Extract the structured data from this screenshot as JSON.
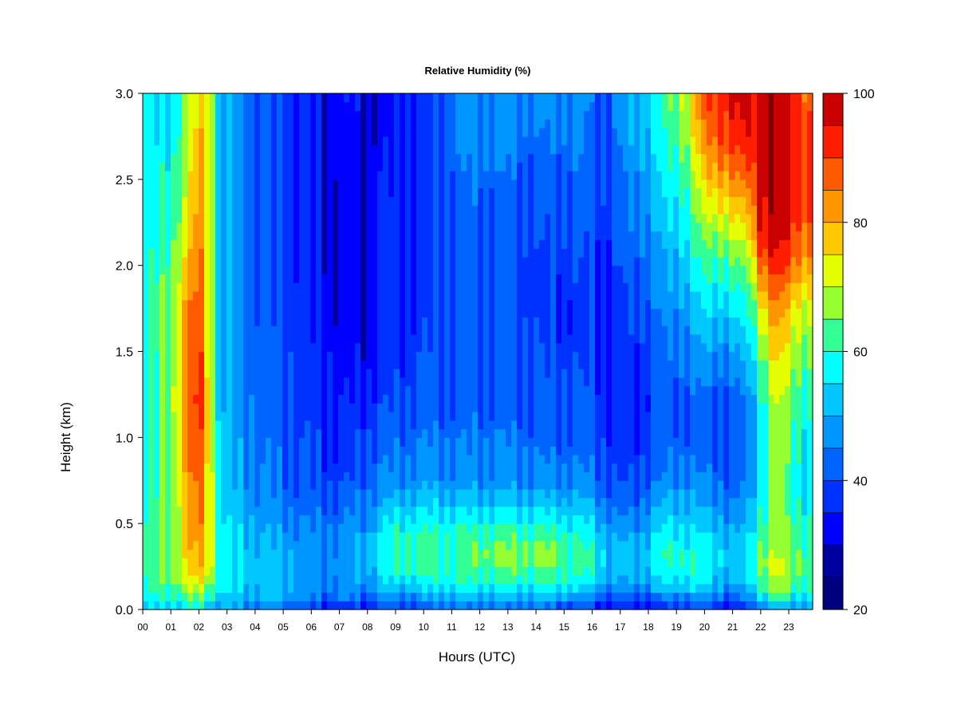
{
  "chart_data": {
    "type": "heatmap",
    "title": "Relative Humidity (%)",
    "xlabel": "Hours (UTC)",
    "ylabel": "Height (km)",
    "xlim": [
      0,
      23.85
    ],
    "ylim": [
      0.0,
      3.0
    ],
    "x_tick_labels": [
      "00",
      "01",
      "02",
      "03",
      "04",
      "05",
      "06",
      "07",
      "08",
      "09",
      "10",
      "11",
      "12",
      "13",
      "14",
      "15",
      "16",
      "17",
      "18",
      "19",
      "20",
      "21",
      "22",
      "23"
    ],
    "y_tick_labels": [
      "0.0",
      "0.5",
      "1.0",
      "1.5",
      "2.0",
      "2.5",
      "3.0"
    ],
    "y_tick_values": [
      0.0,
      0.5,
      1.0,
      1.5,
      2.0,
      2.5,
      3.0
    ],
    "colorbar": {
      "range": [
        20,
        100
      ],
      "step": 5,
      "tick_values": [
        20,
        40,
        60,
        80,
        100
      ],
      "tick_labels": [
        "20",
        "40",
        "60",
        "80",
        "100"
      ],
      "colors": [
        "#00007f",
        "#00009f",
        "#0000ff",
        "#0032ff",
        "#0064ff",
        "#0096ff",
        "#00c8ff",
        "#00ffff",
        "#32ff96",
        "#96ff32",
        "#e6ff00",
        "#ffc800",
        "#ff9600",
        "#ff5a00",
        "#ff1e00",
        "#c80000",
        "#800000"
      ]
    },
    "heights_km": [
      0.0,
      0.05,
      0.1,
      0.2,
      0.3,
      0.4,
      0.5,
      0.6,
      0.7,
      0.8,
      1.0,
      1.2,
      1.4,
      1.6,
      1.8,
      2.0,
      2.2,
      2.4,
      2.6,
      2.8,
      3.0
    ],
    "columns": [
      {
        "hour": 0.0,
        "rh": [
          50,
          55,
          58,
          60,
          60,
          60,
          60,
          58,
          57,
          55,
          55,
          55,
          55,
          55,
          56,
          56,
          56,
          56,
          56,
          56,
          56
        ]
      },
      {
        "hour": 0.5,
        "rh": [
          52,
          57,
          60,
          62,
          63,
          63,
          62,
          61,
          60,
          60,
          60,
          60,
          60,
          61,
          61,
          60,
          58,
          57,
          56,
          55,
          55
        ]
      },
      {
        "hour": 1.0,
        "rh": [
          53,
          58,
          62,
          65,
          66,
          66,
          66,
          66,
          66,
          66,
          66,
          66,
          66,
          66,
          65,
          64,
          62,
          60,
          58,
          56,
          55
        ]
      },
      {
        "hour": 1.5,
        "rh": [
          55,
          62,
          66,
          72,
          76,
          76,
          76,
          77,
          78,
          80,
          82,
          85,
          84,
          82,
          80,
          76,
          72,
          70,
          68,
          66,
          65
        ]
      },
      {
        "hour": 2.0,
        "rh": [
          55,
          62,
          68,
          76,
          80,
          82,
          84,
          85,
          86,
          88,
          90,
          92,
          92,
          90,
          88,
          86,
          84,
          82,
          80,
          78,
          76
        ]
      },
      {
        "hour": 2.4,
        "rh": [
          52,
          58,
          64,
          72,
          74,
          74,
          74,
          74,
          74,
          74,
          74,
          74,
          72,
          72,
          72,
          72,
          72,
          74,
          74,
          74,
          74
        ]
      },
      {
        "hour": 2.8,
        "rh": [
          48,
          52,
          55,
          57,
          57,
          56,
          55,
          54,
          53,
          52,
          51,
          50,
          50,
          50,
          50,
          50,
          50,
          50,
          50,
          50,
          50
        ]
      },
      {
        "hour": 3.5,
        "rh": [
          45,
          50,
          52,
          54,
          54,
          53,
          52,
          50,
          49,
          48,
          47,
          46,
          45,
          45,
          45,
          45,
          45,
          45,
          45,
          45,
          45
        ]
      },
      {
        "hour": 4.5,
        "rh": [
          45,
          50,
          52,
          53,
          52,
          50,
          48,
          46,
          45,
          44,
          43,
          42,
          42,
          41,
          40,
          40,
          40,
          40,
          40,
          40,
          40
        ]
      },
      {
        "hour": 5.5,
        "rh": [
          40,
          46,
          50,
          50,
          50,
          48,
          46,
          44,
          42,
          41,
          40,
          39,
          39,
          38,
          38,
          37,
          37,
          37,
          37,
          37,
          37
        ]
      },
      {
        "hour": 6.0,
        "rh": [
          35,
          40,
          45,
          47,
          47,
          46,
          44,
          42,
          40,
          39,
          38,
          37,
          36,
          35,
          35,
          34,
          34,
          33,
          33,
          33,
          33
        ]
      },
      {
        "hour": 6.5,
        "rh": [
          35,
          40,
          45,
          47,
          47,
          46,
          44,
          42,
          40,
          38,
          37,
          36,
          35,
          35,
          34,
          33,
          33,
          33,
          33,
          33,
          33
        ]
      },
      {
        "hour": 7.0,
        "rh": [
          36,
          42,
          47,
          48,
          48,
          46,
          44,
          42,
          40,
          38,
          36,
          35,
          33,
          32,
          31,
          31,
          31,
          32,
          33,
          33,
          34
        ]
      },
      {
        "hour": 7.5,
        "rh": [
          35,
          40,
          45,
          48,
          48,
          47,
          46,
          44,
          42,
          39,
          37,
          35,
          33,
          32,
          31,
          31,
          31,
          32,
          32,
          32,
          33
        ]
      },
      {
        "hour": 8.0,
        "rh": [
          35,
          40,
          45,
          50,
          52,
          50,
          48,
          46,
          44,
          42,
          40,
          37,
          34,
          32,
          32,
          32,
          32,
          32,
          32,
          32,
          32
        ]
      },
      {
        "hour": 8.5,
        "rh": [
          37,
          42,
          48,
          54,
          57,
          57,
          54,
          50,
          47,
          45,
          42,
          39,
          36,
          35,
          35,
          35,
          35,
          35,
          34,
          33,
          33
        ]
      },
      {
        "hour": 9.0,
        "rh": [
          38,
          43,
          50,
          58,
          60,
          60,
          57,
          52,
          48,
          45,
          42,
          39,
          37,
          36,
          35,
          35,
          35,
          35,
          34,
          34,
          34
        ]
      },
      {
        "hour": 10.0,
        "rh": [
          40,
          45,
          52,
          60,
          62,
          62,
          58,
          54,
          50,
          47,
          44,
          41,
          40,
          39,
          38,
          37,
          37,
          37,
          37,
          37,
          37
        ]
      },
      {
        "hour": 11.0,
        "rh": [
          42,
          47,
          55,
          60,
          63,
          62,
          58,
          53,
          49,
          46,
          44,
          42,
          41,
          41,
          40,
          40,
          41,
          42,
          43,
          44,
          45
        ]
      },
      {
        "hour": 12.0,
        "rh": [
          42,
          47,
          55,
          61,
          64,
          63,
          58,
          53,
          49,
          46,
          44,
          42,
          41,
          40,
          40,
          40,
          41,
          43,
          45,
          47,
          48
        ]
      },
      {
        "hour": 13.0,
        "rh": [
          42,
          47,
          55,
          63,
          66,
          64,
          59,
          54,
          49,
          46,
          44,
          42,
          41,
          40,
          40,
          40,
          41,
          42,
          44,
          46,
          47
        ]
      },
      {
        "hour": 14.0,
        "rh": [
          42,
          47,
          55,
          62,
          65,
          64,
          58,
          53,
          48,
          45,
          43,
          41,
          40,
          39,
          38,
          38,
          39,
          40,
          42,
          44,
          46
        ]
      },
      {
        "hour": 14.5,
        "rh": [
          40,
          46,
          55,
          62,
          66,
          64,
          58,
          52,
          48,
          45,
          42,
          40,
          39,
          38,
          38,
          38,
          39,
          40,
          42,
          44,
          46
        ]
      },
      {
        "hour": 15.5,
        "rh": [
          38,
          44,
          52,
          60,
          62,
          60,
          56,
          52,
          48,
          45,
          42,
          40,
          39,
          38,
          38,
          39,
          40,
          42,
          44,
          46,
          48
        ]
      },
      {
        "hour": 16.0,
        "rh": [
          35,
          42,
          50,
          58,
          60,
          58,
          54,
          50,
          47,
          44,
          42,
          40,
          39,
          38,
          38,
          38,
          39,
          40,
          41,
          42,
          43
        ]
      },
      {
        "hour": 16.5,
        "rh": [
          32,
          38,
          45,
          52,
          54,
          52,
          48,
          45,
          42,
          40,
          38,
          36,
          36,
          36,
          37,
          37,
          38,
          39,
          40,
          41,
          42
        ]
      },
      {
        "hour": 17.0,
        "rh": [
          32,
          37,
          44,
          50,
          52,
          50,
          46,
          43,
          41,
          38,
          35,
          35,
          36,
          37,
          38,
          39,
          40,
          41,
          43,
          45,
          46
        ]
      },
      {
        "hour": 17.5,
        "rh": [
          32,
          37,
          44,
          50,
          52,
          50,
          46,
          43,
          41,
          39,
          36,
          35,
          36,
          38,
          40,
          42,
          44,
          46,
          48,
          50,
          52
        ]
      },
      {
        "hour": 18.0,
        "rh": [
          32,
          38,
          46,
          52,
          54,
          52,
          49,
          46,
          43,
          41,
          39,
          38,
          39,
          41,
          43,
          45,
          47,
          49,
          51,
          53,
          55
        ]
      },
      {
        "hour": 18.5,
        "rh": [
          34,
          40,
          48,
          56,
          60,
          58,
          54,
          50,
          47,
          44,
          41,
          40,
          41,
          43,
          45,
          47,
          50,
          53,
          56,
          58,
          60
        ]
      },
      {
        "hour": 19.0,
        "rh": [
          38,
          44,
          52,
          58,
          60,
          58,
          55,
          52,
          49,
          46,
          43,
          42,
          44,
          46,
          49,
          52,
          55,
          58,
          62,
          65,
          68
        ]
      },
      {
        "hour": 19.5,
        "rh": [
          38,
          44,
          52,
          58,
          60,
          57,
          54,
          51,
          48,
          45,
          42,
          42,
          45,
          48,
          52,
          56,
          60,
          64,
          68,
          72,
          75
        ]
      },
      {
        "hour": 20.0,
        "rh": [
          37,
          43,
          50,
          56,
          57,
          55,
          52,
          49,
          47,
          44,
          41,
          42,
          46,
          50,
          55,
          60,
          66,
          72,
          78,
          84,
          88
        ]
      },
      {
        "hour": 20.5,
        "rh": [
          36,
          42,
          48,
          54,
          56,
          54,
          51,
          48,
          46,
          43,
          40,
          41,
          45,
          50,
          56,
          62,
          70,
          78,
          86,
          92,
          94
        ]
      },
      {
        "hour": 21.0,
        "rh": [
          32,
          38,
          45,
          50,
          52,
          50,
          47,
          44,
          42,
          40,
          38,
          40,
          45,
          50,
          56,
          62,
          70,
          78,
          86,
          92,
          95
        ]
      },
      {
        "hour": 21.5,
        "rh": [
          36,
          42,
          48,
          54,
          55,
          53,
          50,
          48,
          46,
          44,
          42,
          44,
          48,
          53,
          58,
          64,
          72,
          80,
          88,
          94,
          96
        ]
      },
      {
        "hour": 22.0,
        "rh": [
          45,
          52,
          60,
          66,
          68,
          65,
          62,
          60,
          58,
          58,
          58,
          60,
          64,
          70,
          78,
          88,
          96,
          98,
          98,
          98,
          98
        ]
      },
      {
        "hour": 22.5,
        "rh": [
          50,
          58,
          66,
          70,
          70,
          68,
          66,
          66,
          66,
          66,
          68,
          70,
          74,
          78,
          84,
          92,
          97,
          99,
          99,
          99,
          99
        ]
      },
      {
        "hour": 23.0,
        "rh": [
          48,
          55,
          62,
          68,
          68,
          66,
          64,
          63,
          63,
          63,
          64,
          66,
          70,
          74,
          80,
          88,
          94,
          97,
          98,
          98,
          98
        ]
      },
      {
        "hour": 23.5,
        "rh": [
          46,
          52,
          58,
          64,
          64,
          62,
          60,
          58,
          57,
          57,
          58,
          60,
          64,
          68,
          74,
          82,
          88,
          92,
          92,
          90,
          88
        ]
      },
      {
        "hour": 23.85,
        "rh": [
          45,
          50,
          56,
          62,
          62,
          60,
          58,
          56,
          55,
          55,
          56,
          58,
          62,
          66,
          72,
          80,
          86,
          90,
          90,
          88,
          86
        ]
      }
    ]
  }
}
